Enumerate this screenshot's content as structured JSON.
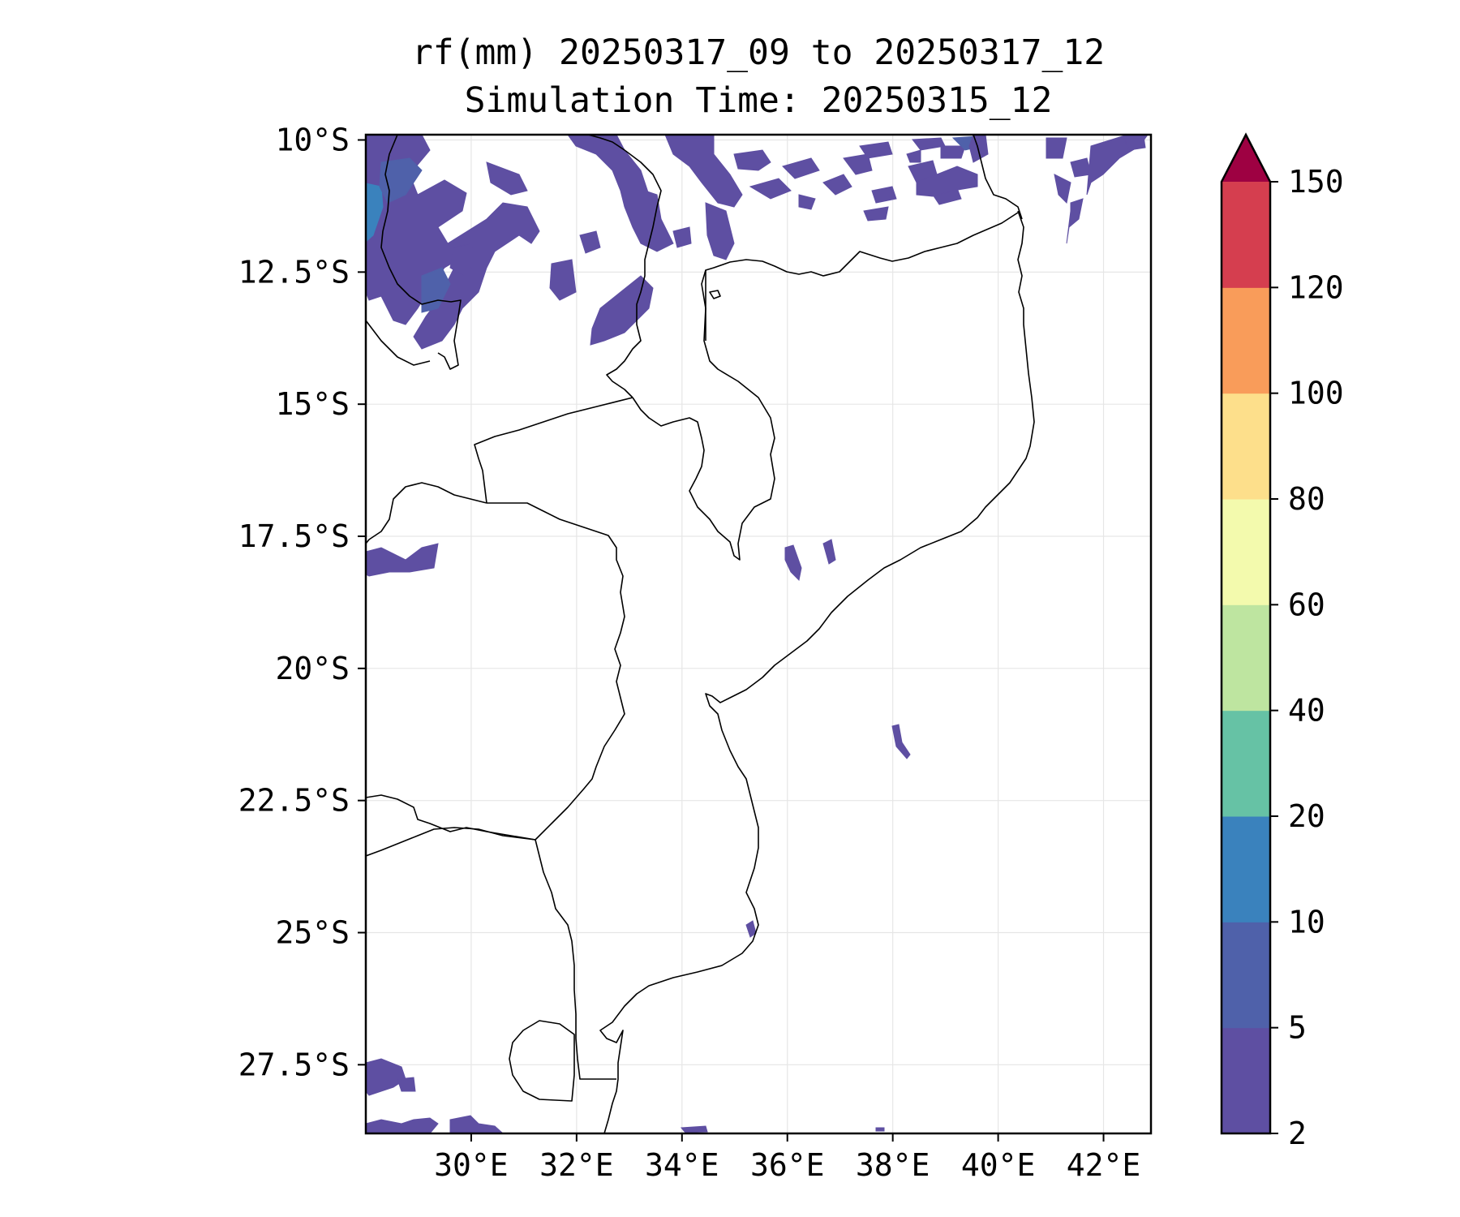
{
  "title": {
    "line1": "rf(mm) 20250317_09 to 20250317_12",
    "line2": "Simulation Time: 20250315_12"
  },
  "map": {
    "lon_range": [
      28.0,
      42.9
    ],
    "lat_range": [
      -28.8,
      -9.9
    ],
    "x_ticks": [
      "30°E",
      "32°E",
      "34°E",
      "36°E",
      "38°E",
      "40°E",
      "42°E"
    ],
    "x_tick_values": [
      30,
      32,
      34,
      36,
      38,
      40,
      42
    ],
    "y_ticks": [
      "10°S",
      "12.5°S",
      "15°S",
      "17.5°S",
      "20°S",
      "22.5°S",
      "25°S",
      "27.5°S"
    ],
    "y_tick_values": [
      -10,
      -12.5,
      -15,
      -17.5,
      -20,
      -22.5,
      -25,
      -27.5
    ],
    "gridlines": true,
    "border_color": "#000000"
  },
  "colorbar": {
    "labels": [
      "2",
      "5",
      "10",
      "20",
      "40",
      "60",
      "80",
      "100",
      "120",
      "150"
    ],
    "colors": [
      "#5e4fa2",
      "#4f61aa",
      "#3a82bd",
      "#66c2a5",
      "#bee5a0",
      "#f3faad",
      "#fddf8b",
      "#f99c5a",
      "#d53e4f"
    ],
    "extend_color": "#9e0142",
    "extend": "max"
  },
  "precip_colors": {
    "light": "#5e4fa2",
    "medium": "#4f61aa",
    "heavy": "#3a82bd"
  }
}
